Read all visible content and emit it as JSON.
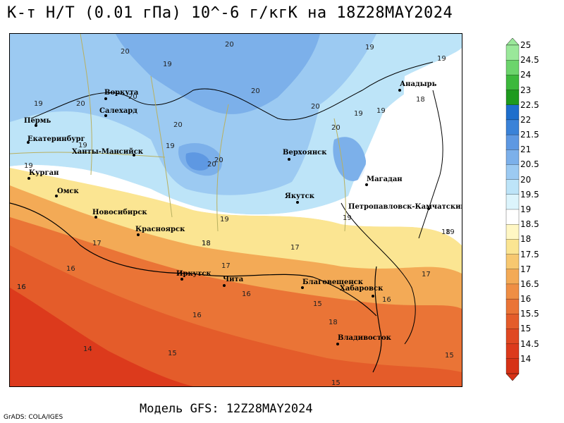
{
  "title": "K-т H/T (0.01 гПа) 10^-6 г/кгK на 18Z28MAY2024",
  "subtitle": "Модель GFS: 12Z28MAY2024",
  "credit": "GrADS: COLA/IGES",
  "legend": {
    "ticks": [
      "25",
      "24.5",
      "24",
      "23",
      "22.5",
      "22",
      "21.5",
      "21",
      "20.5",
      "20",
      "19.5",
      "19",
      "18.5",
      "18",
      "17.5",
      "17",
      "16.5",
      "16",
      "15.5",
      "15",
      "14.5",
      "14"
    ],
    "colors": [
      "#9ae89a",
      "#6cd46c",
      "#3cb83c",
      "#1e9a1e",
      "#1e6ecc",
      "#3a82d8",
      "#5e98e2",
      "#7cb0ea",
      "#9ccaf2",
      "#bde4f8",
      "#dcf4fc",
      "#ffffff",
      "#fff7c4",
      "#fbe592",
      "#f7c870",
      "#f3aa56",
      "#ef8e44",
      "#ea7436",
      "#e45c2a",
      "#e04822",
      "#dc3a1c",
      "#d63216"
    ]
  },
  "cities": [
    {
      "name": "Анадырь"
    },
    {
      "name": "Воркута"
    },
    {
      "name": "Салехард"
    },
    {
      "name": "Пермь"
    },
    {
      "name": "Екатеринбург"
    },
    {
      "name": "Ханты-Мансийск"
    },
    {
      "name": "Курган"
    },
    {
      "name": "Омск"
    },
    {
      "name": "Новосибирск"
    },
    {
      "name": "Красноярск"
    },
    {
      "name": "Верхоянск"
    },
    {
      "name": "Якутск"
    },
    {
      "name": "Магадан"
    },
    {
      "name": "Петропавловск-Камчатский"
    },
    {
      "name": "Иркутск"
    },
    {
      "name": "Чита"
    },
    {
      "name": "Благовещенск"
    },
    {
      "name": "Хабаровск"
    },
    {
      "name": "Владивосток"
    }
  ],
  "contour_labels": [
    "20",
    "20",
    "19",
    "19",
    "20",
    "20",
    "20",
    "19",
    "19",
    "19",
    "20",
    "20",
    "19",
    "19",
    "20",
    "20",
    "19",
    "19",
    "19",
    "20",
    "19",
    "18",
    "17",
    "16",
    "16",
    "16",
    "16",
    "15",
    "15",
    "14",
    "15",
    "17",
    "17",
    "18",
    "18",
    "18",
    "15",
    "16",
    "19",
    "18",
    "17",
    "16"
  ]
}
